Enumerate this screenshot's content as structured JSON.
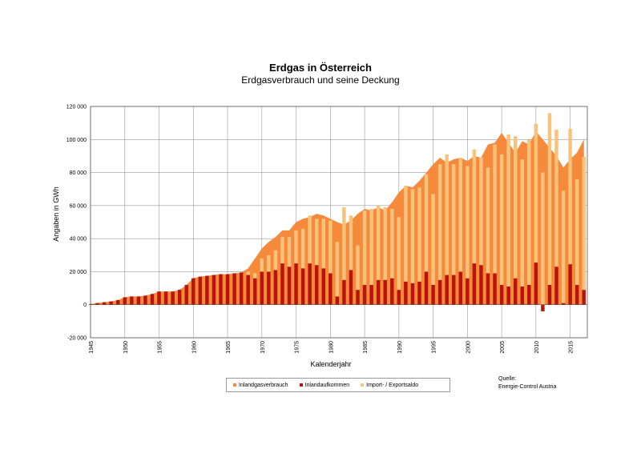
{
  "title": "Erdgas in Österreich",
  "subtitle": "Erdgasverbrauch und seine Deckung",
  "source": {
    "label": "Quelle:",
    "name": "Energie-Control Austria"
  },
  "colors": {
    "area": "#F58A3C",
    "production": "#B8140C",
    "import": "#F9C27A",
    "grid": "#9a9a9a"
  },
  "chart_data": {
    "type": "bar",
    "title": "Erdgas in Österreich",
    "subtitle": "Erdgasverbrauch und seine Deckung",
    "xlabel": "Kalenderjahr",
    "ylabel": "Angaben in GWh",
    "ylim": [
      -20000,
      120000
    ],
    "xlim": [
      1945,
      2017
    ],
    "y_ticks": [
      "-20 000",
      "0",
      "20 000",
      "40 000",
      "60 000",
      "80 000",
      "100 000",
      "120 000"
    ],
    "y_tick_values": [
      -20000,
      0,
      20000,
      40000,
      60000,
      80000,
      100000,
      120000
    ],
    "x_ticks": [
      1945,
      1950,
      1955,
      1960,
      1965,
      1970,
      1975,
      1980,
      1985,
      1990,
      1995,
      2000,
      2005,
      2010,
      2015
    ],
    "grid": true,
    "legend_position": "bottom",
    "x": [
      1945,
      1946,
      1947,
      1948,
      1949,
      1950,
      1951,
      1952,
      1953,
      1954,
      1955,
      1956,
      1957,
      1958,
      1959,
      1960,
      1961,
      1962,
      1963,
      1964,
      1965,
      1966,
      1967,
      1968,
      1969,
      1970,
      1971,
      1972,
      1973,
      1974,
      1975,
      1976,
      1977,
      1978,
      1979,
      1980,
      1981,
      1982,
      1983,
      1984,
      1985,
      1986,
      1987,
      1988,
      1989,
      1990,
      1991,
      1992,
      1993,
      1994,
      1995,
      1996,
      1997,
      1998,
      1999,
      2000,
      2001,
      2002,
      2003,
      2004,
      2005,
      2006,
      2007,
      2008,
      2009,
      2010,
      2011,
      2012,
      2013,
      2014,
      2015,
      2016,
      2017
    ],
    "series": [
      {
        "name": "Inlandgasverbrauch",
        "style": "area",
        "values": [
          400,
          1000,
          1500,
          2000,
          2800,
          4500,
          5000,
          5000,
          5500,
          6500,
          8000,
          8000,
          8000,
          9000,
          12000,
          16000,
          17000,
          17500,
          18000,
          18500,
          18500,
          19000,
          19500,
          22000,
          28000,
          34000,
          38000,
          41000,
          45000,
          45000,
          50000,
          52000,
          53000,
          55000,
          54000,
          52000,
          50000,
          48500,
          51000,
          55000,
          58000,
          57000,
          59000,
          57000,
          62000,
          68000,
          72000,
          71000,
          75000,
          80000,
          85000,
          89000,
          86000,
          88000,
          89000,
          87000,
          90000,
          89000,
          97000,
          98000,
          104000,
          98000,
          92000,
          99000,
          97000,
          105000,
          100000,
          95000,
          90000,
          83000,
          88000,
          92000,
          100000
        ]
      },
      {
        "name": "Inlandaufkommen",
        "style": "bar",
        "values": [
          400,
          1000,
          1500,
          2000,
          2800,
          4500,
          5000,
          5000,
          5500,
          6500,
          8000,
          8000,
          8000,
          9000,
          12000,
          16000,
          17000,
          17500,
          18000,
          18500,
          18500,
          19000,
          19500,
          18000,
          16000,
          20000,
          20000,
          21000,
          25000,
          23000,
          25000,
          22000,
          25000,
          24000,
          22000,
          19000,
          5000,
          15000,
          21000,
          9000,
          12000,
          12000,
          15000,
          15000,
          16000,
          9000,
          14000,
          13000,
          14000,
          20000,
          12000,
          15000,
          18000,
          18000,
          20000,
          16000,
          25000,
          24000,
          19000,
          19000,
          12000,
          11000,
          16000,
          11000,
          12000,
          25500,
          -4000,
          12000,
          23000,
          1000,
          24500,
          12000,
          9000
        ]
      },
      {
        "name": "Import- / Exportsaldo",
        "style": "bar",
        "values": [
          0,
          0,
          0,
          0,
          0,
          0,
          0,
          0,
          0,
          0,
          0,
          0,
          0,
          0,
          0,
          0,
          0,
          0,
          0,
          0,
          0,
          0,
          0,
          2000,
          3000,
          8000,
          10000,
          12000,
          16000,
          18000,
          20000,
          24000,
          29000,
          28000,
          30000,
          32000,
          33000,
          44000,
          33000,
          27000,
          45000,
          46000,
          45000,
          44000,
          42000,
          44000,
          58000,
          57000,
          57000,
          59000,
          55000,
          70000,
          73000,
          67000,
          69000,
          68000,
          69000,
          65000,
          64000,
          78000,
          79000,
          92000,
          86000,
          77000,
          88000,
          84000,
          80000,
          104000,
          83000,
          68000,
          82000,
          64000,
          80500
        ]
      }
    ]
  },
  "legend": {
    "items": [
      {
        "label": "Inlandgasverbrauch",
        "color": "#F58A3C"
      },
      {
        "label": "Inlandaufkommen",
        "color": "#B8140C"
      },
      {
        "label": "Import- / Exportsaldo",
        "color": "#F9C27A"
      }
    ]
  }
}
